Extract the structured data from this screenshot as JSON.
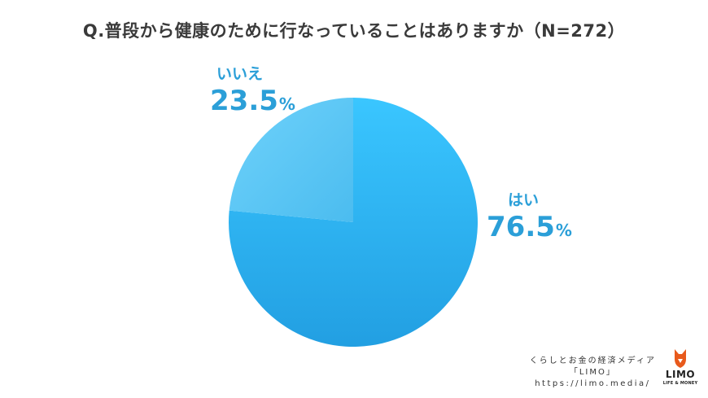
{
  "chart_data": {
    "type": "pie",
    "title": "Q.普段から健康のために行なっていることはありますか（N=272）",
    "slices": [
      {
        "label": "はい",
        "value": 76.5,
        "display": "76.5",
        "unit": "%",
        "color": "#36c0fb"
      },
      {
        "label": "いいえ",
        "value": 23.5,
        "display": "23.5",
        "unit": "%",
        "color": "#5fcaf8"
      }
    ]
  },
  "footer": {
    "line1": "くらしとお金の経済メディア",
    "line2": "「LIMO」",
    "url": "https://limo.media/"
  },
  "logo": {
    "name": "LIMO",
    "tagline": "LIFE & MONEY",
    "icon": "fox-head-icon",
    "color": "#e85a1c"
  },
  "colors": {
    "label_text": "#2b9fd8",
    "title_text": "#3a3a3a"
  }
}
